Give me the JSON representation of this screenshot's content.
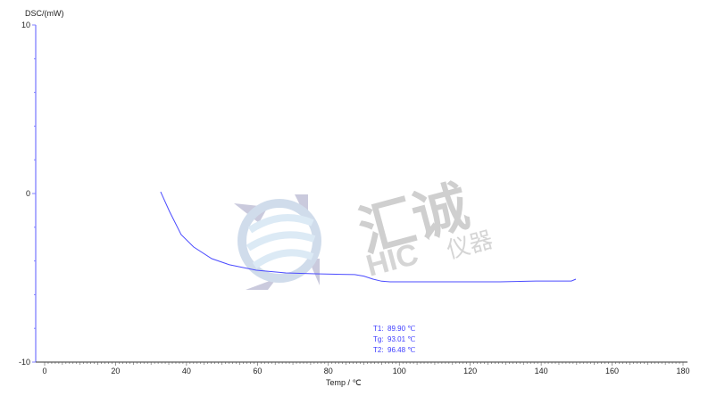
{
  "chart_data": {
    "type": "line",
    "title": "",
    "xlabel": "Temp / ℃",
    "ylabel": "DSC/(mW)",
    "xlim": [
      0,
      180
    ],
    "ylim": [
      -10,
      10
    ],
    "x_ticks": [
      0,
      20,
      40,
      60,
      80,
      100,
      120,
      140,
      160,
      180
    ],
    "y_ticks": [
      -10,
      0,
      10
    ],
    "grid": false,
    "series": [
      {
        "color": "#4b4bff",
        "x": [
          32.7,
          35.2,
          38.5,
          42.0,
          47.1,
          52.1,
          59.7,
          68.0,
          76.3,
          87.4,
          90.0,
          92.6,
          95.0,
          97.4,
          108.3,
          118.0,
          128.4,
          138.5,
          148.5,
          149.8
        ],
        "y": [
          0.1,
          -1.06,
          -2.44,
          -3.17,
          -3.86,
          -4.23,
          -4.55,
          -4.71,
          -4.76,
          -4.81,
          -4.9,
          -5.08,
          -5.2,
          -5.24,
          -5.24,
          -5.24,
          -5.24,
          -5.19,
          -5.19,
          -5.08
        ]
      }
    ],
    "annotations": [
      {
        "label": "T1:",
        "value": "89.90 ℃"
      },
      {
        "label": "Tg:",
        "value": "93.01 ℃"
      },
      {
        "label": "T2:",
        "value": "96.48 ℃"
      }
    ],
    "annotation_color": "#3c3cff",
    "axis_color": "#8080ff"
  },
  "watermark": {
    "text_cn": "汇诚",
    "text_en": "HIC",
    "text_cn2": "仪器"
  }
}
